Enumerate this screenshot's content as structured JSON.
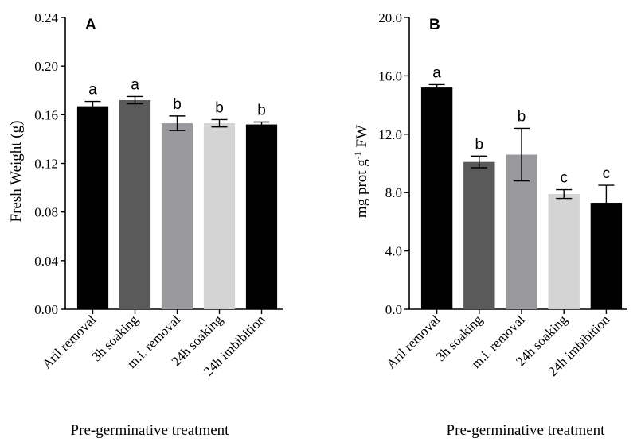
{
  "chart_data": [
    {
      "panel": "A",
      "type": "bar",
      "ylabel": "Fresh Weight (g)",
      "xlabel": "Pre-germinative treatment",
      "ylim": [
        0,
        0.24
      ],
      "yticks": [
        "0.00",
        "0.04",
        "0.08",
        "0.12",
        "0.16",
        "0.20",
        "0.24"
      ],
      "categories": [
        "Aril removal",
        "3h soaking",
        "m.i. removal",
        "24h soaking",
        "24h imbibition"
      ],
      "values": [
        0.167,
        0.172,
        0.153,
        0.153,
        0.152
      ],
      "errors": [
        0.004,
        0.003,
        0.006,
        0.003,
        0.002
      ],
      "significance": [
        "a",
        "a",
        "b",
        "b",
        "b"
      ],
      "colors": [
        "#000000",
        "#5a5a5a",
        "#9a9a9e",
        "#d4d4d4",
        "#000000"
      ]
    },
    {
      "panel": "B",
      "type": "bar",
      "ylabel_main": "mg prot g",
      "ylabel_sup": "-1",
      "ylabel_tail": " FW",
      "xlabel": "Pre-germinative treatment",
      "ylim": [
        0,
        20
      ],
      "yticks": [
        "0.0",
        "4.0",
        "8.0",
        "12.0",
        "16.0",
        "20.0"
      ],
      "categories": [
        "Aril removal",
        "3h soaking",
        "m.i. removal",
        "24h soaking",
        "24h imbibition"
      ],
      "values": [
        15.2,
        10.1,
        10.6,
        7.9,
        7.3
      ],
      "errors": [
        0.2,
        0.4,
        1.8,
        0.3,
        1.2
      ],
      "significance": [
        "a",
        "b",
        "b",
        "c",
        "c"
      ],
      "colors": [
        "#000000",
        "#5a5a5a",
        "#9a9a9e",
        "#d4d4d4",
        "#000000"
      ]
    }
  ]
}
